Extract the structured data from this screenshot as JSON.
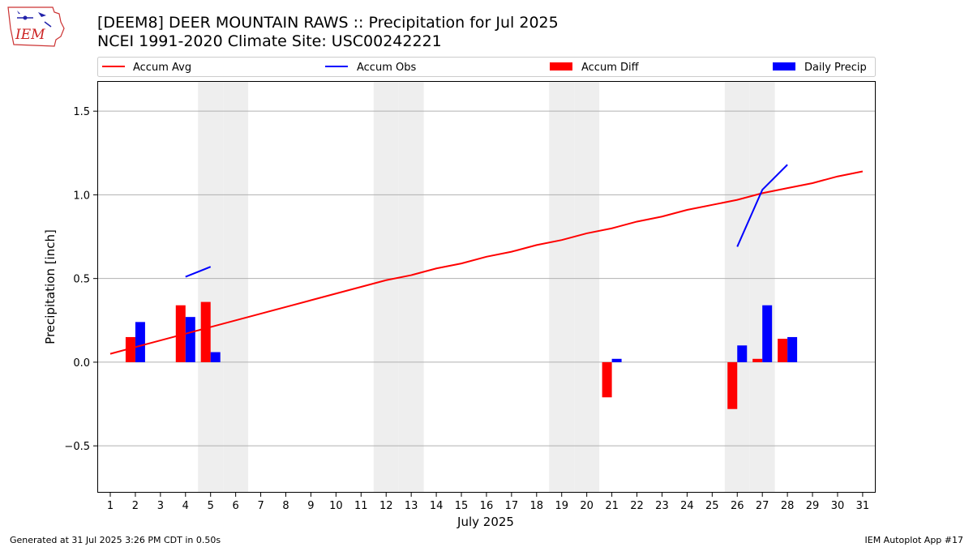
{
  "header": {
    "title_line1": "[DEEM8] DEER MOUNTAIN RAWS :: Precipitation for Jul 2025",
    "title_line2": "NCEI 1991-2020 Climate Site: USC00242221"
  },
  "logo": {
    "text": "IEM",
    "icon": "iem-logo-icon"
  },
  "footer": {
    "left": "Generated at 31 Jul 2025 3:26 PM CDT in 0.50s",
    "right": "IEM Autoplot App #17"
  },
  "colors": {
    "avg": "#ff0000",
    "obs": "#0000ff",
    "diff": "#ff0000",
    "daily": "#0000ff",
    "weekend": "#eeeeee",
    "grid": "#b0b0b0"
  },
  "chart_data": {
    "type": "bar",
    "xlabel": "July 2025",
    "ylabel": "Precipitation [inch]",
    "ylim": [
      -0.78,
      1.68
    ],
    "yticks": [
      -0.5,
      0.0,
      0.5,
      1.0,
      1.5
    ],
    "ytick_labels": [
      "−0.5",
      "0.0",
      "0.5",
      "1.0",
      "1.5"
    ],
    "days": [
      1,
      2,
      3,
      4,
      5,
      6,
      7,
      8,
      9,
      10,
      11,
      12,
      13,
      14,
      15,
      16,
      17,
      18,
      19,
      20,
      21,
      22,
      23,
      24,
      25,
      26,
      27,
      28,
      29,
      30,
      31
    ],
    "weekend_days": [
      5,
      6,
      12,
      13,
      19,
      20,
      26,
      27
    ],
    "grid": "horizontal",
    "legend": {
      "position": "top",
      "entries": [
        "Accum Avg",
        "Accum Obs",
        "Accum Diff",
        "Daily Precip"
      ]
    },
    "series": [
      {
        "name": "Accum Avg",
        "type": "line",
        "values": [
          0.05,
          0.09,
          0.13,
          0.17,
          0.21,
          0.25,
          0.29,
          0.33,
          0.37,
          0.41,
          0.45,
          0.49,
          0.52,
          0.56,
          0.59,
          0.63,
          0.66,
          0.7,
          0.73,
          0.77,
          0.8,
          0.84,
          0.87,
          0.91,
          0.94,
          0.97,
          1.01,
          1.04,
          1.07,
          1.11,
          1.14
        ]
      },
      {
        "name": "Accum Obs",
        "type": "line",
        "points": [
          [
            4,
            0.51
          ],
          [
            5,
            0.57
          ],
          [
            26,
            0.69
          ],
          [
            27,
            1.03
          ],
          [
            28,
            1.18
          ]
        ],
        "segments": [
          [
            4,
            5
          ],
          [
            26,
            28
          ]
        ]
      },
      {
        "name": "Accum Diff",
        "type": "bar",
        "points": [
          [
            2,
            0.15
          ],
          [
            4,
            0.34
          ],
          [
            5,
            0.36
          ],
          [
            21,
            -0.21
          ],
          [
            26,
            -0.28
          ],
          [
            27,
            0.02
          ],
          [
            28,
            0.14
          ]
        ]
      },
      {
        "name": "Daily Precip",
        "type": "bar",
        "points": [
          [
            2,
            0.24
          ],
          [
            4,
            0.27
          ],
          [
            5,
            0.06
          ],
          [
            21,
            0.02
          ],
          [
            26,
            0.1
          ],
          [
            27,
            0.34
          ],
          [
            28,
            0.15
          ]
        ]
      }
    ]
  }
}
